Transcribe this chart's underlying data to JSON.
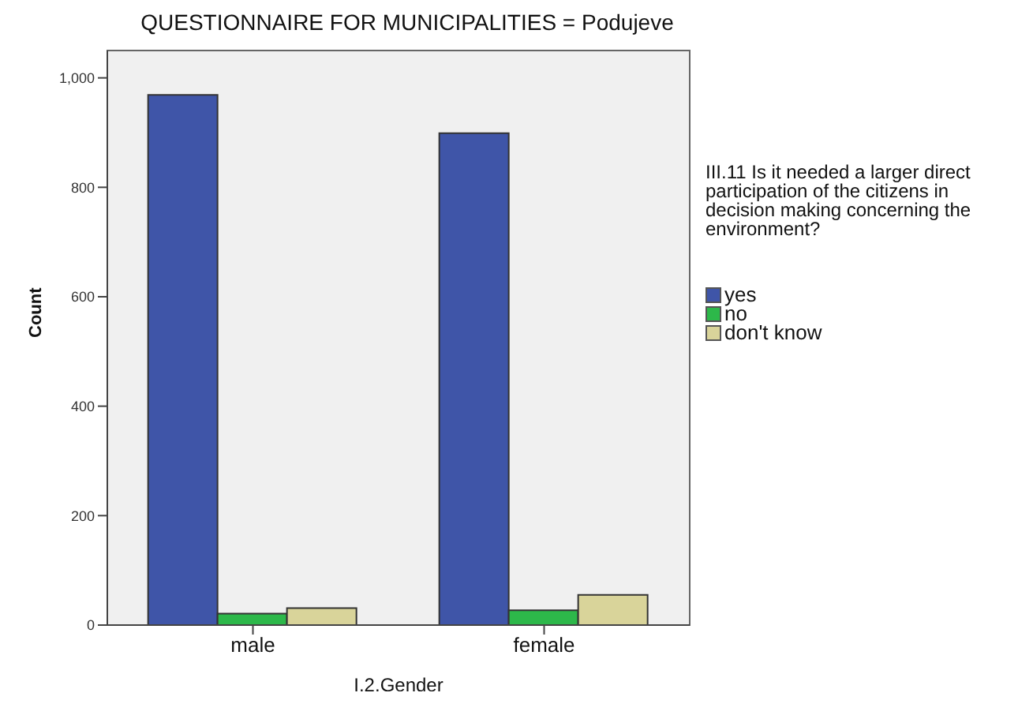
{
  "chart_data": {
    "type": "bar",
    "title": "QUESTIONNAIRE FOR MUNICIPALITIES = Podujeve",
    "xlabel": "I.2.Gender",
    "ylabel": "Count",
    "legend_title": "III.11 Is it needed a larger direct participation of the citizens in decision making concerning the environment?",
    "categories": [
      "male",
      "female"
    ],
    "series": [
      {
        "name": "yes",
        "color": "#3f55a8",
        "values": [
          969,
          899
        ]
      },
      {
        "name": "no",
        "color": "#2db84a",
        "values": [
          21,
          27
        ]
      },
      {
        "name": "don't know",
        "color": "#d9d49a",
        "values": [
          31,
          55
        ]
      }
    ],
    "ylim": [
      0,
      1050
    ],
    "yticks": [
      0,
      {
        "value": 200,
        "label": "200"
      },
      {
        "value": 400,
        "label": "400"
      },
      {
        "value": 600,
        "label": "600"
      },
      {
        "value": 800,
        "label": "800"
      },
      {
        "value": 1000,
        "label": "1,000"
      }
    ],
    "legend": "right"
  }
}
